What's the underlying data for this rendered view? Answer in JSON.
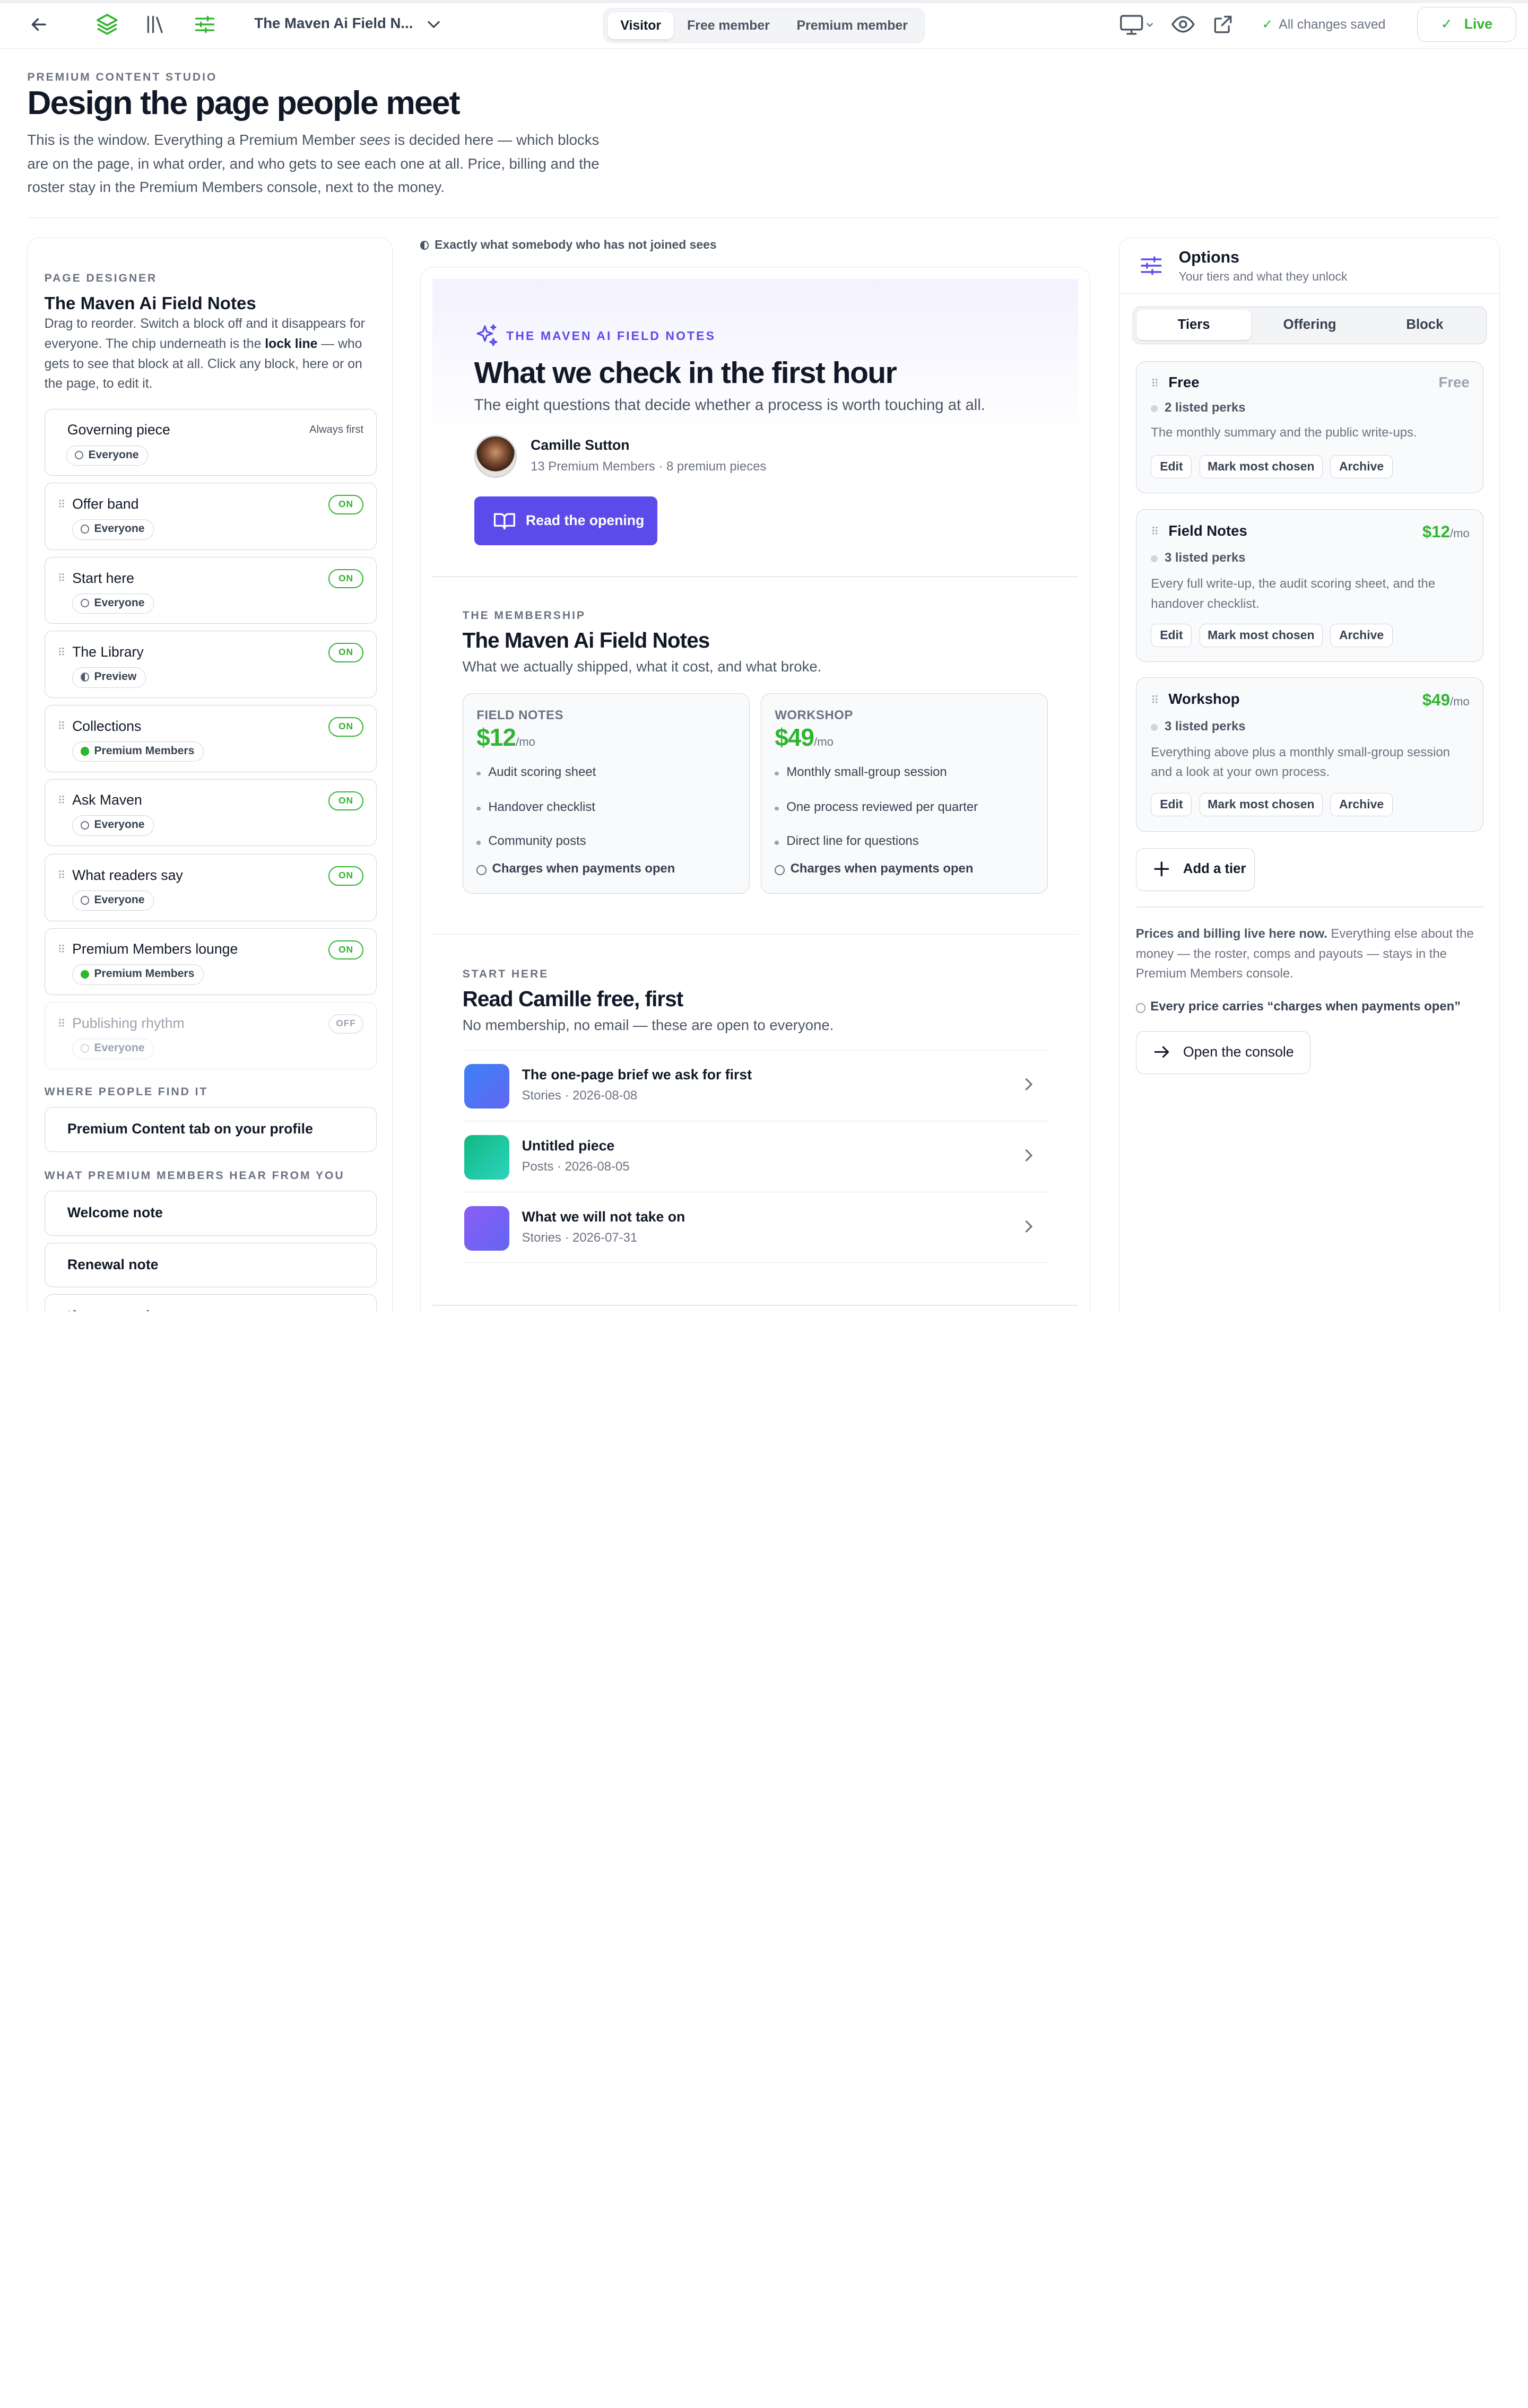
{
  "topbar": {
    "doc_title": "The Maven Ai Field N...",
    "view_modes": [
      "Visitor",
      "Free member",
      "Premium member"
    ],
    "active_view": "Visitor",
    "saved_status": "All changes saved",
    "live_label": "Live",
    "icons": [
      "back-arrow-icon",
      "layers-icon",
      "library-icon",
      "sliders-icon",
      "chevron-down-icon",
      "monitor-icon",
      "eye-icon",
      "external-link-icon",
      "check-icon"
    ]
  },
  "header": {
    "eyebrow": "PREMIUM CONTENT STUDIO",
    "title": "Design the page people meet",
    "intro_1": "This is the window. Everything a Premium Member ",
    "intro_em": "sees",
    "intro_2": " is decided here — which blocks are on the page, in what order, and who gets to see each one at all. Price, billing and the roster stay in the Premium Members console, next to the money."
  },
  "designer": {
    "eyebrow": "PAGE DESIGNER",
    "title": "The Maven Ai Field Notes",
    "desc_1": "Drag to reorder. Switch a block off and it disappears for everyone. The chip underneath is the ",
    "desc_bold": "lock line",
    "desc_2": " — who gets to see that block at all. Click any block, here or on the page, to edit it.",
    "governing": {
      "name": "Governing piece",
      "note": "Always first",
      "chip": "Everyone"
    },
    "blocks": [
      {
        "name": "Offer band",
        "state": "ON",
        "chip": "Everyone"
      },
      {
        "name": "Start here",
        "state": "ON",
        "chip": "Everyone"
      },
      {
        "name": "The Library",
        "state": "ON",
        "chip": "Preview"
      },
      {
        "name": "Collections",
        "state": "ON",
        "chip": "Premium Members"
      },
      {
        "name": "Ask Maven",
        "state": "ON",
        "chip": "Everyone"
      },
      {
        "name": "What readers say",
        "state": "ON",
        "chip": "Everyone"
      },
      {
        "name": "Premium Members lounge",
        "state": "ON",
        "chip": "Premium Members"
      },
      {
        "name": "Publishing rhythm",
        "state": "OFF",
        "chip": "Everyone"
      }
    ],
    "where_label": "WHERE PEOPLE FIND IT",
    "where_item": "Premium Content tab on your profile",
    "hear_label": "WHAT PREMIUM MEMBERS HEAR FROM YOU",
    "hear_items": [
      "Welcome note",
      "Renewal note",
      "If someone leaves"
    ]
  },
  "preview": {
    "note": "Exactly what somebody who has not joined sees",
    "hero": {
      "eyebrow": "THE MAVEN AI FIELD NOTES",
      "title": "What we check in the first hour",
      "subtitle": "The eight questions that decide whether a process is worth touching at all.",
      "author": "Camille Sutton",
      "author_meta": "13 Premium Members · 8 premium pieces",
      "cta": "Read the opening"
    },
    "membership": {
      "eyebrow": "THE MEMBERSHIP",
      "title": "The Maven Ai Field Notes",
      "subtitle": "What we actually shipped, what it cost, and what broke.",
      "tiers": [
        {
          "name": "FIELD NOTES",
          "price": "$12",
          "unit": "/mo",
          "perks": [
            "Audit scoring sheet",
            "Handover checklist",
            "Community posts"
          ],
          "charges": "Charges when payments open"
        },
        {
          "name": "WORKSHOP",
          "price": "$49",
          "unit": "/mo",
          "perks": [
            "Monthly small-group session",
            "One process reviewed per quarter",
            "Direct line for questions"
          ],
          "charges": "Charges when payments open"
        }
      ]
    },
    "start": {
      "eyebrow": "START HERE",
      "title": "Read Camille free, first",
      "subtitle": "No membership, no email — these are open to everyone.",
      "items": [
        {
          "title": "The one-page brief we ask for first",
          "meta": "Stories · 2026-08-08"
        },
        {
          "title": "Untitled piece",
          "meta": "Posts · 2026-08-05"
        },
        {
          "title": "What we will not take on",
          "meta": "Stories · 2026-07-31"
        }
      ]
    }
  },
  "options": {
    "title": "Options",
    "subtitle": "Your tiers and what they unlock",
    "tabs": [
      "Tiers",
      "Offering",
      "Block"
    ],
    "active_tab": "Tiers",
    "tiers": [
      {
        "name": "Free",
        "price": "Free",
        "unit": "",
        "perks": "2 listed perks",
        "desc": "The monthly summary and the public write-ups."
      },
      {
        "name": "Field Notes",
        "price": "$12",
        "unit": "/mo",
        "perks": "3 listed perks",
        "desc": "Every full write-up, the audit scoring sheet, and the handover checklist."
      },
      {
        "name": "Workshop",
        "price": "$49",
        "unit": "/mo",
        "perks": "3 listed perks",
        "desc": "Everything above plus a monthly small-group session and a look at your own process."
      }
    ],
    "actions": [
      "Edit",
      "Mark most chosen",
      "Archive"
    ],
    "add_tier": "Add a tier",
    "note_bold": "Prices and billing live here now.",
    "note_rest": " Everything else about the money — the roster, comps and payouts — stays in the Premium Members console.",
    "every_price": "Every price carries “charges when payments open”",
    "console_button": "Open the console"
  },
  "colors": {
    "accent": "#5b4bea",
    "green": "#2fb52f",
    "border": "#d1d5db"
  }
}
